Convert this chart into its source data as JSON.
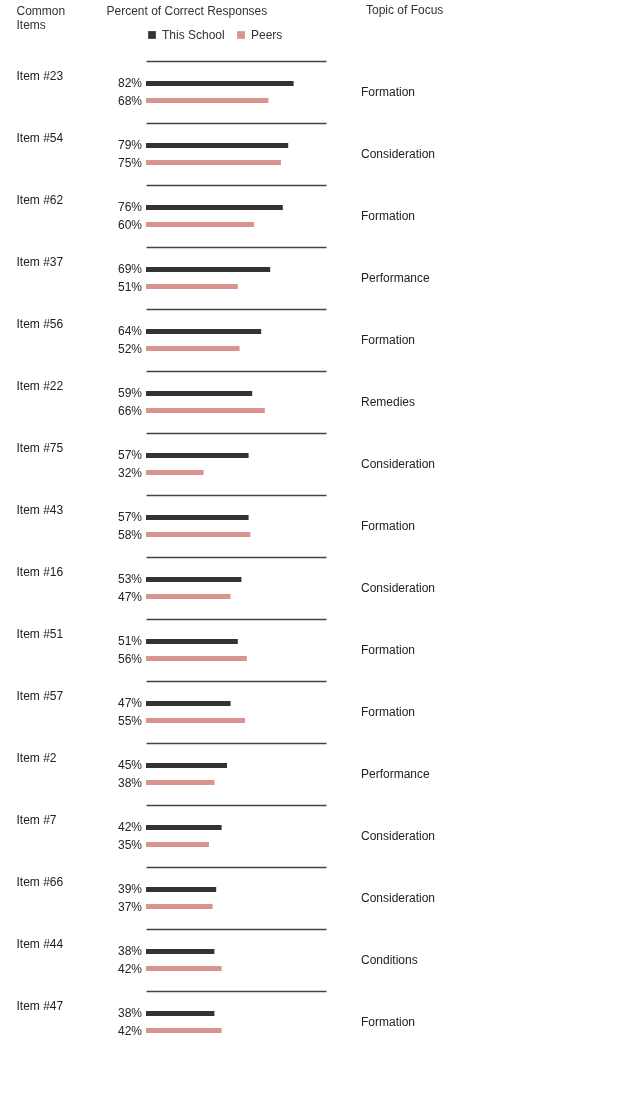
{
  "chart_data": {
    "type": "bar",
    "orientation": "horizontal",
    "xlabel": "Percent of Correct Responses",
    "ylabel": "Common Items",
    "categories": [
      "Item #23",
      "Item #54",
      "Item #62",
      "Item #37",
      "Item #56",
      "Item #22",
      "Item #75",
      "Item #43",
      "Item #16",
      "Item #51",
      "Item #57",
      "Item #2",
      "Item #7",
      "Item #66",
      "Item #44",
      "Item #47"
    ],
    "series": [
      {
        "name": "This School",
        "color": "#333333",
        "values": [
          82,
          79,
          76,
          69,
          64,
          59,
          57,
          57,
          53,
          51,
          47,
          45,
          42,
          39,
          38,
          38
        ],
        "value_labels": [
          "82%",
          "79%",
          "76%",
          "69%",
          "64%",
          "59%",
          "57%",
          "57%",
          "53%",
          "51%",
          "47%",
          "45%",
          "42%",
          "39%",
          "38%",
          "38%"
        ]
      },
      {
        "name": "Peers",
        "color": "#d9948f",
        "values": [
          68,
          75,
          60,
          51,
          52,
          66,
          32,
          58,
          47,
          56,
          55,
          38,
          35,
          37,
          42,
          42
        ],
        "value_labels": [
          "68%",
          "75%",
          "60%",
          "51%",
          "52%",
          "66%",
          "32%",
          "58%",
          "47%",
          "56%",
          "55%",
          "38%",
          "35%",
          "37%",
          "42%",
          "42%"
        ]
      }
    ],
    "legend": "top",
    "grid": "y",
    "annotations": [
      "Topic of Focus",
      "Formation",
      "Consideration",
      "Formation",
      "Performance",
      "Formation",
      "Remedies",
      "Consideration",
      "Formation",
      "Consideration",
      "Formation",
      "Formation",
      "Performance",
      "Consideration",
      "Consideration",
      "Conditions",
      "Formation"
    ]
  }
}
